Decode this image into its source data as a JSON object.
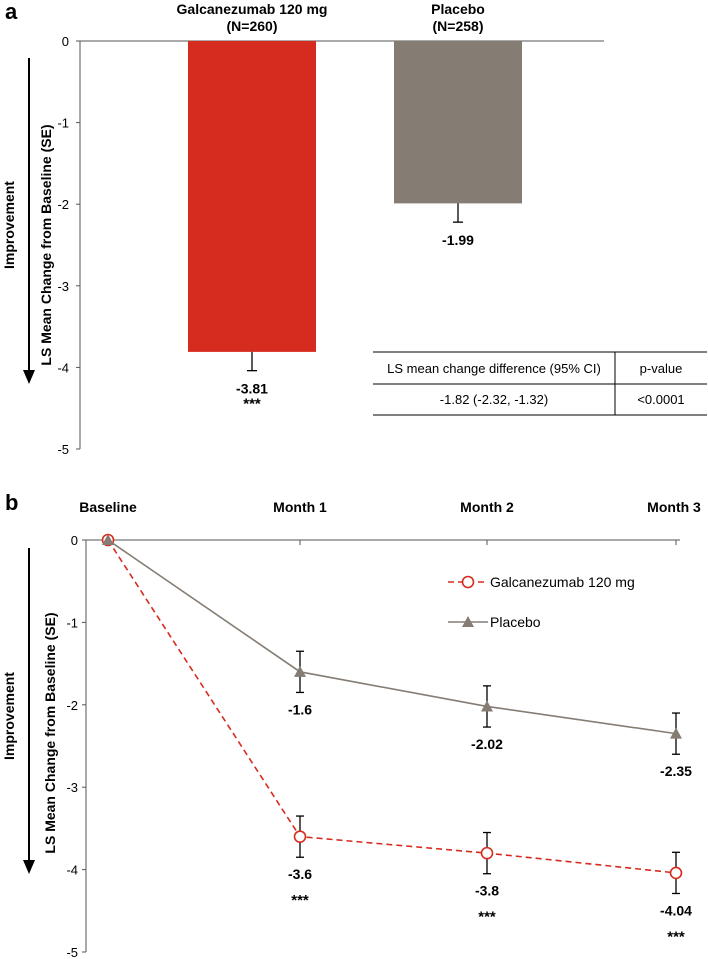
{
  "chart_data": [
    {
      "panel": "a",
      "type": "bar",
      "title": "",
      "ylabel": "LS Mean Change from Baseline (SE)",
      "arrow_label": "Improvement",
      "ylim": [
        -5,
        0
      ],
      "yticks": [
        "0",
        "-1",
        "-2",
        "-3",
        "-4",
        "-5"
      ],
      "categories": [
        {
          "name": "Galcanezumab 120 mg",
          "n": "(N=260)",
          "value": -3.81,
          "se": 0.23,
          "value_label": "-3.81",
          "significance": "***",
          "color": "#d62b1f"
        },
        {
          "name": "Placebo",
          "n": "(N=258)",
          "value": -1.99,
          "se": 0.23,
          "value_label": "-1.99",
          "significance": "",
          "color": "#857c74"
        }
      ],
      "table": {
        "headers": [
          "LS mean change difference (95% CI)",
          "p-value"
        ],
        "row": [
          "-1.82 (-2.32, -1.32)",
          "<0.0001"
        ]
      }
    },
    {
      "panel": "b",
      "type": "line",
      "title": "",
      "ylabel": "LS Mean Change from Baseline (SE)",
      "arrow_label": "Improvement",
      "ylim": [
        -5,
        0
      ],
      "yticks": [
        "0",
        "-1",
        "-2",
        "-3",
        "-4",
        "-5"
      ],
      "x": [
        "Baseline",
        "Month 1",
        "Month 2",
        "Month 3"
      ],
      "series": [
        {
          "name": "Galcanezumab 120 mg",
          "values": [
            0,
            -3.6,
            -3.8,
            -4.04
          ],
          "se": [
            0,
            0.25,
            0.25,
            0.25
          ],
          "labels": [
            "",
            "-3.6",
            "-3.8",
            "-4.04"
          ],
          "significance": [
            "",
            "***",
            "***",
            "***"
          ],
          "color": "#d62b1f",
          "style": "dashed",
          "marker": "open-circle"
        },
        {
          "name": "Placebo",
          "values": [
            0,
            -1.6,
            -2.02,
            -2.35
          ],
          "se": [
            0,
            0.25,
            0.25,
            0.25
          ],
          "labels": [
            "",
            "-1.6",
            "-2.02",
            "-2.35"
          ],
          "significance": [
            "",
            "",
            "",
            ""
          ],
          "color": "#857c74",
          "style": "solid",
          "marker": "triangle"
        }
      ]
    }
  ]
}
